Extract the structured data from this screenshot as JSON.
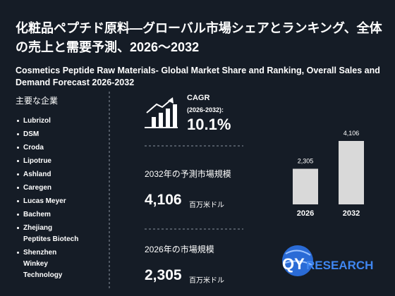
{
  "header": {
    "title": "化粧品ペプチド原料—グローバル市場シェアとランキング、全体の売上と需要予測、2026～2032",
    "subtitle": "Cosmetics Peptide Raw Materials- Global Market Share and Ranking, Overall Sales and Demand Forecast 2026-2032"
  },
  "companies": {
    "heading": "主要な企業",
    "items": [
      "Lubrizol",
      "DSM",
      "Croda",
      "Lipotrue",
      "Ashland",
      "Caregen",
      "Lucas Meyer",
      "Bachem",
      "Zhejiang Peptites Biotech",
      "Shenzhen Winkey Technology"
    ]
  },
  "cagr": {
    "label": "CAGR",
    "period": "(2026-2032):",
    "value": "10.1%"
  },
  "forecast": {
    "label": "2032年の予測市場規模",
    "value": "4,106",
    "unit": "百万米ドル"
  },
  "current": {
    "label": "2026年の市場規模",
    "value": "2,305",
    "unit": "百万米ドル"
  },
  "bar_chart": {
    "categories": [
      "2026",
      "2032"
    ],
    "values": [
      2305,
      4106
    ],
    "value_labels": [
      "2,305",
      "4,106"
    ],
    "color": "#d9d9d9"
  },
  "logo": {
    "prefix": "QY",
    "suffix": "RESEARCH"
  }
}
